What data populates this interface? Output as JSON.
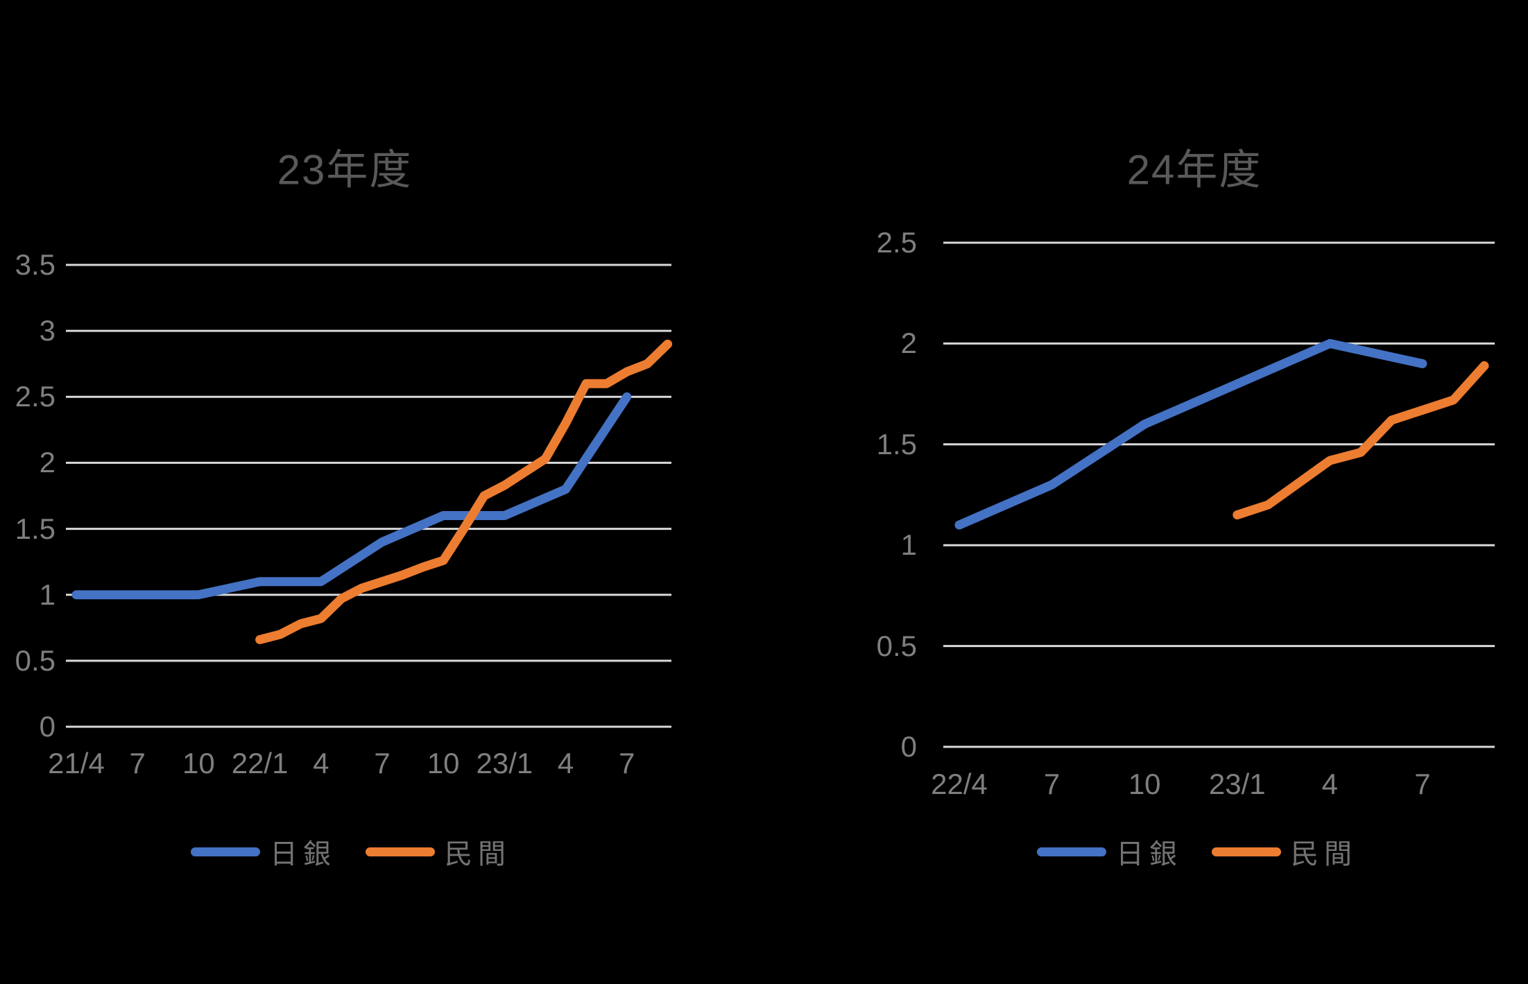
{
  "background_color": "#000000",
  "grid_color": "#D9D9D9",
  "title_color": "#595959",
  "axis_label_color": "#7F7F7F",
  "legend_text_color": "#737373",
  "chart_data": [
    {
      "id": "fy23",
      "type": "line",
      "title": "23年度",
      "xlabel": "",
      "ylabel": "",
      "ylim": [
        0,
        3.5
      ],
      "y_tick_labels": [
        "3.5",
        "3",
        "2.5",
        "2",
        "1.5",
        "1",
        "0.5",
        "0"
      ],
      "y_tick_values": [
        3.5,
        3,
        2.5,
        2,
        1.5,
        1,
        0.5,
        0
      ],
      "x_axis_note": "monthly categories from 2021/04 to 2023/09",
      "x_tick_labels": [
        "21/4",
        "7",
        "10",
        "22/1",
        "4",
        "7",
        "10",
        "23/1",
        "4",
        "7"
      ],
      "x_tick_month_index": [
        0,
        3,
        6,
        9,
        12,
        15,
        18,
        21,
        24,
        27
      ],
      "grid": true,
      "legend_position": "bottom",
      "series": [
        {
          "name": "日銀",
          "color": "#4472C4",
          "points": [
            [
              0,
              1.0
            ],
            [
              3,
              1.0
            ],
            [
              6,
              1.0
            ],
            [
              9,
              1.1
            ],
            [
              12,
              1.1
            ],
            [
              15,
              1.4
            ],
            [
              18,
              1.6
            ],
            [
              21,
              1.6
            ],
            [
              24,
              1.8
            ],
            [
              27,
              2.5
            ]
          ]
        },
        {
          "name": "民間",
          "color": "#ED7D31",
          "start_month_index": 9,
          "values": [
            0.66,
            0.7,
            0.78,
            0.82,
            0.97,
            1.05,
            1.1,
            1.15,
            1.21,
            1.26,
            1.5,
            1.75,
            1.83,
            1.93,
            2.03,
            2.3,
            2.6,
            2.6,
            2.69,
            2.75,
            2.9
          ]
        }
      ]
    },
    {
      "id": "fy24",
      "type": "line",
      "title": "24年度",
      "xlabel": "",
      "ylabel": "",
      "ylim": [
        0,
        2.5
      ],
      "y_tick_labels": [
        "2.5",
        "2",
        "1.5",
        "1",
        "0.5",
        "0"
      ],
      "y_tick_values": [
        2.5,
        2,
        1.5,
        1,
        0.5,
        0
      ],
      "x_axis_note": "monthly categories from 2022/04 to 2023/09",
      "x_tick_labels": [
        "22/4",
        "7",
        "10",
        "23/1",
        "4",
        "7"
      ],
      "x_tick_month_index": [
        0,
        3,
        6,
        9,
        12,
        15
      ],
      "grid": true,
      "legend_position": "bottom",
      "series": [
        {
          "name": "日銀",
          "color": "#4472C4",
          "points": [
            [
              0,
              1.1
            ],
            [
              3,
              1.3
            ],
            [
              6,
              1.6
            ],
            [
              9,
              1.8
            ],
            [
              12,
              2.0
            ],
            [
              15,
              1.9
            ]
          ]
        },
        {
          "name": "民間",
          "color": "#ED7D31",
          "start_month_index": 9,
          "values": [
            1.15,
            1.2,
            1.31,
            1.42,
            1.46,
            1.62,
            1.67,
            1.72,
            1.89
          ]
        }
      ]
    }
  ]
}
